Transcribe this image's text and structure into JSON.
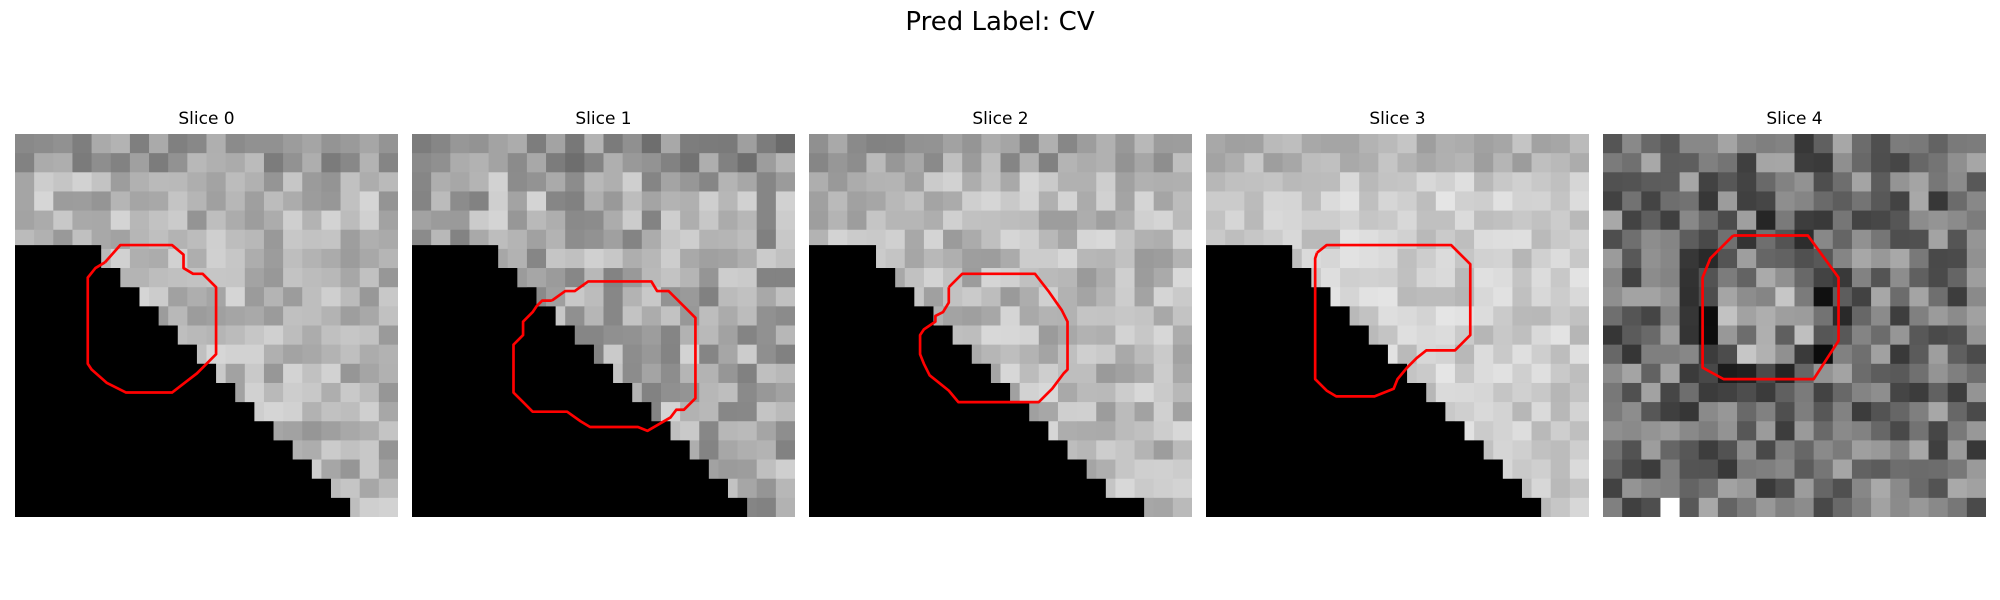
{
  "suptitle": "Pred Label: CV",
  "panels": [
    {
      "title": "Slice 0",
      "seed": 11,
      "bias": 180,
      "contrast": 34,
      "bright_cols": [],
      "edge": [
        [
          0,
          8.5
        ],
        [
          3,
          8.5
        ],
        [
          3,
          9.0
        ],
        [
          4,
          9.0
        ],
        [
          4,
          10.0
        ],
        [
          5,
          10.0
        ],
        [
          6,
          11.0
        ],
        [
          7,
          12.0
        ],
        [
          8,
          13.0
        ],
        [
          9,
          14.0
        ],
        [
          10,
          15.0
        ],
        [
          11,
          16.0
        ],
        [
          12,
          17.0
        ],
        [
          13,
          18.0
        ],
        [
          14,
          19.0
        ],
        [
          15,
          20.0
        ],
        [
          16,
          21.0
        ],
        [
          17,
          22.5
        ],
        [
          18,
          22.5
        ],
        [
          19,
          24.0
        ],
        [
          20,
          24.0
        ],
        [
          21,
          26.0
        ],
        [
          22,
          26.0
        ]
      ],
      "dark_cutoff": 14,
      "contour": [
        [
          4.7,
          6.7
        ],
        [
          5.5,
          5.8
        ],
        [
          7.2,
          5.8
        ],
        [
          8.2,
          5.8
        ],
        [
          8.8,
          6.3
        ],
        [
          8.8,
          7.0
        ],
        [
          9.3,
          7.3
        ],
        [
          9.8,
          7.3
        ],
        [
          10.5,
          8.0
        ],
        [
          10.5,
          9.3
        ],
        [
          10.5,
          10.8
        ],
        [
          10.5,
          11.5
        ],
        [
          9.7,
          12.3
        ],
        [
          9.5,
          12.5
        ],
        [
          8.2,
          13.5
        ],
        [
          7.0,
          13.5
        ],
        [
          6.0,
          13.5
        ],
        [
          5.8,
          13.5
        ],
        [
          4.8,
          13.0
        ],
        [
          4.0,
          12.3
        ],
        [
          3.8,
          12.0
        ],
        [
          3.8,
          11.0
        ],
        [
          3.8,
          9.3
        ],
        [
          3.8,
          7.5
        ],
        [
          4.2,
          7.0
        ],
        [
          4.7,
          6.7
        ]
      ]
    },
    {
      "title": "Slice 1",
      "seed": 23,
      "bias": 170,
      "contrast": 42,
      "bright_cols": [],
      "edge": [
        [
          0,
          8.0
        ],
        [
          3,
          8.0
        ],
        [
          3,
          9.0
        ],
        [
          4,
          9.0
        ],
        [
          4,
          10.0
        ],
        [
          5,
          10.0
        ],
        [
          6,
          11.0
        ],
        [
          7,
          12.0
        ],
        [
          8,
          13.0
        ],
        [
          9,
          14.0
        ],
        [
          10,
          15.0
        ],
        [
          11,
          16.0
        ],
        [
          12,
          16.0
        ],
        [
          13,
          16.0
        ],
        [
          14,
          17.0
        ],
        [
          15,
          17.5
        ],
        [
          16,
          18.0
        ],
        [
          17,
          19.5
        ],
        [
          18,
          20.5
        ],
        [
          19,
          21.5
        ],
        [
          20,
          21.5
        ],
        [
          21,
          21.5
        ],
        [
          22,
          21.5
        ]
      ],
      "dark_cutoff": 14,
      "contour": [
        [
          7.3,
          8.7
        ],
        [
          8.0,
          8.2
        ],
        [
          8.5,
          8.2
        ],
        [
          9.2,
          7.7
        ],
        [
          9.8,
          7.7
        ],
        [
          11.5,
          7.7
        ],
        [
          12.5,
          7.7
        ],
        [
          12.8,
          8.2
        ],
        [
          13.4,
          8.2
        ],
        [
          14.2,
          9.0
        ],
        [
          14.8,
          9.6
        ],
        [
          14.8,
          11.5
        ],
        [
          14.8,
          13.2
        ],
        [
          14.8,
          13.8
        ],
        [
          14.2,
          14.4
        ],
        [
          13.8,
          14.4
        ],
        [
          13.5,
          14.8
        ],
        [
          12.3,
          15.5
        ],
        [
          11.8,
          15.3
        ],
        [
          10.0,
          15.3
        ],
        [
          9.3,
          15.3
        ],
        [
          8.8,
          15.0
        ],
        [
          8.1,
          14.5
        ],
        [
          7.0,
          14.5
        ],
        [
          6.3,
          14.5
        ],
        [
          5.8,
          14.0
        ],
        [
          5.3,
          13.5
        ],
        [
          5.3,
          12.4
        ],
        [
          5.3,
          11.5
        ],
        [
          5.3,
          11.0
        ],
        [
          5.8,
          10.5
        ],
        [
          5.8,
          9.8
        ],
        [
          6.3,
          9.3
        ],
        [
          6.5,
          9.0
        ],
        [
          6.8,
          8.7
        ],
        [
          7.3,
          8.7
        ]
      ]
    },
    {
      "title": "Slice 2",
      "seed": 37,
      "bias": 185,
      "contrast": 32,
      "bright_cols": [],
      "edge": [
        [
          0,
          7.0
        ],
        [
          3,
          7.0
        ],
        [
          3,
          8.0
        ],
        [
          4,
          8.0
        ],
        [
          4,
          9.0
        ],
        [
          5,
          9.0
        ],
        [
          6,
          10.0
        ],
        [
          7,
          11.0
        ],
        [
          8,
          12.0
        ],
        [
          9,
          13.0
        ],
        [
          10,
          14.0
        ],
        [
          11,
          15.0
        ],
        [
          12,
          16.0
        ],
        [
          13,
          16.0
        ],
        [
          14,
          17.0
        ],
        [
          15,
          17.5
        ],
        [
          16,
          18.5
        ],
        [
          17,
          19.0
        ],
        [
          18,
          21.0
        ],
        [
          19,
          22.0
        ],
        [
          20,
          22.0
        ],
        [
          21,
          22.0
        ],
        [
          22,
          22.0
        ]
      ],
      "dark_cutoff": 14,
      "contour": [
        [
          7.3,
          8.0
        ],
        [
          8.0,
          7.3
        ],
        [
          9.2,
          7.3
        ],
        [
          10.5,
          7.3
        ],
        [
          11.8,
          7.3
        ],
        [
          12.5,
          8.2
        ],
        [
          13.2,
          9.2
        ],
        [
          13.5,
          9.8
        ],
        [
          13.5,
          11.5
        ],
        [
          13.5,
          12.3
        ],
        [
          13.3,
          12.5
        ],
        [
          12.7,
          13.3
        ],
        [
          12.0,
          14.0
        ],
        [
          10.5,
          14.0
        ],
        [
          9.2,
          14.0
        ],
        [
          8.2,
          14.0
        ],
        [
          7.8,
          14.0
        ],
        [
          7.3,
          13.4
        ],
        [
          6.8,
          13.0
        ],
        [
          6.3,
          12.6
        ],
        [
          6.0,
          12.0
        ],
        [
          5.8,
          11.5
        ],
        [
          5.8,
          10.5
        ],
        [
          6.0,
          10.2
        ],
        [
          6.6,
          9.8
        ],
        [
          6.6,
          9.5
        ],
        [
          7.0,
          9.3
        ],
        [
          7.3,
          8.8
        ],
        [
          7.3,
          8.0
        ]
      ]
    },
    {
      "title": "Slice 3",
      "seed": 53,
      "bias": 205,
      "contrast": 24,
      "bright_cols": [],
      "edge": [
        [
          0,
          7.5
        ],
        [
          3,
          7.5
        ],
        [
          3,
          8.5
        ],
        [
          4,
          8.5
        ],
        [
          4,
          9.5
        ],
        [
          5,
          9.5
        ],
        [
          6,
          10.5
        ],
        [
          7,
          11.5
        ],
        [
          8,
          12.5
        ],
        [
          9,
          13.5
        ],
        [
          10,
          14.5
        ],
        [
          11,
          15.5
        ],
        [
          12,
          16.5
        ],
        [
          13,
          17.0
        ],
        [
          14,
          18.0
        ],
        [
          15,
          18.5
        ],
        [
          16,
          19.5
        ],
        [
          17,
          20.0
        ],
        [
          18,
          21.5
        ],
        [
          19,
          22.0
        ],
        [
          20,
          22.0
        ],
        [
          21,
          22.0
        ],
        [
          22,
          22.0
        ]
      ],
      "dark_cutoff": 14,
      "contour": [
        [
          5.8,
          6.2
        ],
        [
          6.3,
          5.8
        ],
        [
          8.2,
          5.8
        ],
        [
          12.7,
          5.8
        ],
        [
          12.8,
          5.8
        ],
        [
          13.5,
          6.5
        ],
        [
          13.8,
          6.8
        ],
        [
          13.8,
          8.0
        ],
        [
          13.8,
          10.5
        ],
        [
          13.5,
          10.8
        ],
        [
          13.0,
          11.3
        ],
        [
          12.0,
          11.3
        ],
        [
          11.5,
          11.3
        ],
        [
          11.0,
          11.7
        ],
        [
          10.5,
          12.2
        ],
        [
          10.0,
          12.8
        ],
        [
          9.8,
          13.3
        ],
        [
          8.8,
          13.7
        ],
        [
          7.5,
          13.7
        ],
        [
          6.8,
          13.7
        ],
        [
          6.3,
          13.4
        ],
        [
          5.7,
          12.8
        ],
        [
          5.7,
          10.5
        ],
        [
          5.7,
          8.0
        ],
        [
          5.7,
          6.5
        ],
        [
          5.8,
          6.2
        ]
      ]
    },
    {
      "title": "Slice 4",
      "seed": 71,
      "bias": 112,
      "contrast": 58,
      "bright_cols": [
        3
      ],
      "edge": [],
      "dark_cutoff": 0,
      "ring": {
        "cx": 8.5,
        "cy": 9.0,
        "r": 3.6
      },
      "contour": [
        [
          6.8,
          5.3
        ],
        [
          7.5,
          5.3
        ],
        [
          9.8,
          5.3
        ],
        [
          10.7,
          5.3
        ],
        [
          12.3,
          7.5
        ],
        [
          12.3,
          10.5
        ],
        [
          12.3,
          10.8
        ],
        [
          11.0,
          12.8
        ],
        [
          10.5,
          12.8
        ],
        [
          8.5,
          12.8
        ],
        [
          6.3,
          12.8
        ],
        [
          5.2,
          12.2
        ],
        [
          5.2,
          10.5
        ],
        [
          5.2,
          7.5
        ],
        [
          5.6,
          6.5
        ],
        [
          6.3,
          5.8
        ],
        [
          6.8,
          5.3
        ]
      ]
    }
  ]
}
